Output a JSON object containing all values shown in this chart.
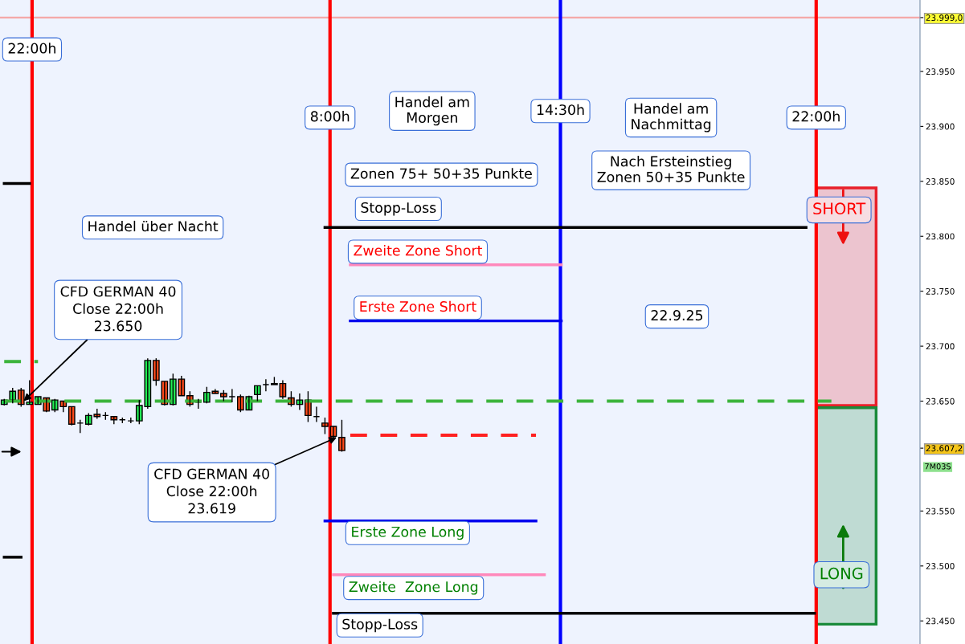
{
  "chart_data": {
    "type": "candlestick",
    "categories": [
      null,
      null,
      null,
      null,
      null,
      null,
      null,
      null,
      null,
      null,
      null,
      null,
      null,
      null,
      null,
      null,
      null,
      null,
      null,
      null,
      null,
      null,
      null,
      null,
      null,
      null,
      null,
      null,
      null,
      null,
      null,
      null,
      null,
      null,
      null,
      null,
      null,
      null,
      null,
      null,
      null,
      null,
      null,
      null,
      null,
      null,
      null,
      null,
      null,
      null,
      null,
      null,
      null,
      null,
      null,
      null,
      null,
      null,
      null,
      null,
      null,
      null,
      null,
      null,
      null,
      null,
      null,
      null,
      null,
      null,
      null,
      null,
      null,
      null,
      null,
      null,
      null,
      null,
      null,
      null,
      null,
      null,
      null,
      null,
      null,
      null,
      null,
      null,
      null,
      null,
      null,
      null,
      null,
      null,
      null,
      null,
      null,
      null,
      null,
      null,
      null,
      null,
      null,
      null,
      null,
      null,
      null,
      null,
      null
    ],
    "ohlc": [
      [
        23647,
        23652,
        23646,
        23651
      ],
      [
        23651,
        23662,
        23648,
        23659
      ],
      [
        23660,
        23662,
        23645,
        23647
      ],
      [
        23647,
        23669,
        23647,
        23649
      ],
      [
        23647,
        23654,
        23647,
        23654
      ],
      [
        23653,
        23653,
        23640,
        23641
      ],
      [
        23642,
        23652,
        23640,
        23651
      ],
      [
        23650,
        23650,
        23640,
        23645
      ],
      [
        23645,
        23645,
        23628,
        23629
      ],
      [
        23630,
        23633,
        23621,
        23630
      ],
      [
        23629,
        23639,
        23628,
        23637
      ],
      [
        23638,
        23643,
        23634,
        23636
      ],
      [
        23637,
        23640,
        23633,
        23637
      ],
      [
        23636,
        23636,
        23629,
        23633
      ],
      [
        23633,
        23635,
        23630,
        23633
      ],
      [
        23632,
        23635,
        23630,
        23632
      ],
      [
        23632,
        23651,
        23629,
        23646
      ],
      [
        23645,
        23689,
        23643,
        23687
      ],
      [
        23687,
        23689,
        23664,
        23669
      ],
      [
        23668,
        23668,
        23646,
        23647
      ],
      [
        23647,
        23675,
        23646,
        23670
      ],
      [
        23670,
        23673,
        23655,
        23655
      ],
      [
        23655,
        23659,
        23645,
        23647
      ],
      [
        23649,
        23652,
        23643,
        23649
      ],
      [
        23649,
        23663,
        23648,
        23658
      ],
      [
        23659,
        23661,
        23657,
        23657
      ],
      [
        23657,
        23660,
        23650,
        23654
      ],
      [
        23654,
        23661,
        23649,
        23654
      ],
      [
        23654,
        23656,
        23640,
        23642
      ],
      [
        23642,
        23655,
        23642,
        23654
      ],
      [
        23656,
        23664,
        23650,
        23664
      ],
      [
        23665,
        23670,
        23659,
        23665
      ],
      [
        23665,
        23672,
        23665,
        23666
      ],
      [
        23666,
        23669,
        23652,
        23654
      ],
      [
        23653,
        23659,
        23645,
        23647
      ],
      [
        23647,
        23657,
        23642,
        23651
      ],
      [
        23651,
        23659,
        23631,
        23637
      ],
      [
        23636,
        23645,
        23631,
        23636
      ],
      [
        23630,
        23635,
        23620,
        23627
      ],
      [
        23627,
        23627,
        23616,
        23618
      ],
      [
        23617,
        23633,
        23604,
        23605
      ],
      null,
      null,
      null,
      null,
      null,
      null,
      null,
      null,
      null,
      null,
      null,
      null,
      null,
      null,
      null,
      null,
      null,
      null,
      null,
      null,
      null,
      null,
      null,
      null,
      null,
      null,
      null,
      null,
      null,
      null,
      null,
      null,
      null,
      null,
      null,
      null,
      null,
      null,
      null,
      null,
      null,
      null,
      null,
      null,
      null,
      null,
      null,
      null,
      null,
      null,
      null,
      null,
      null,
      null,
      null,
      null,
      null,
      null,
      null,
      null,
      null,
      null,
      null,
      null,
      null,
      null,
      null,
      null
    ],
    "series": [
      {
        "type": "line",
        "color": "#3cb43c",
        "line_style": "dashed",
        "values": [
          23650,
          23650,
          23650,
          23650,
          23650,
          23650,
          23650,
          23650,
          23650,
          23650,
          23650,
          23650,
          23650,
          23650,
          23650,
          23650,
          23650,
          23650,
          23650,
          23650,
          23650,
          23650,
          23650,
          23650,
          23650,
          23650,
          23650,
          23650,
          23650,
          23650,
          23650,
          23650,
          23650,
          23650,
          23650,
          23650,
          23650,
          23650,
          23650,
          23650,
          23650,
          23650,
          23650,
          23650,
          23650,
          23650,
          23650,
          23650,
          23650,
          23650,
          23650,
          23650,
          23650,
          23650,
          23650,
          23650,
          23650,
          23650,
          23650,
          23650,
          23650,
          23650,
          23650,
          23650,
          23650,
          23650,
          23650,
          23650,
          23650,
          23650,
          23650,
          23650,
          23650,
          23650,
          23650,
          23650,
          23650,
          23650,
          23650,
          23650,
          23650,
          23650,
          23650,
          23650,
          23650,
          23650,
          23650,
          23650,
          23650,
          23650,
          23650,
          23650,
          23650,
          23650,
          23650,
          23650,
          23650,
          23650,
          23650,
          null,
          null,
          null,
          null,
          null,
          null,
          null,
          null,
          null,
          null
        ]
      },
      {
        "type": "line",
        "color": "#3cb43c",
        "line_style": "dashed",
        "values": [
          23686,
          23686,
          23686,
          23686,
          23686,
          null,
          null,
          null,
          null,
          null,
          null,
          null,
          null,
          null,
          null,
          null,
          null,
          null,
          null,
          null,
          null,
          null,
          null,
          null,
          null,
          null,
          null,
          null,
          null,
          null,
          null,
          null,
          null,
          null,
          null,
          null,
          null,
          null,
          null,
          null,
          null,
          null,
          null,
          null,
          null,
          null,
          null,
          null,
          null,
          null,
          null,
          null,
          null,
          null,
          null,
          null,
          null,
          null,
          null,
          null,
          null,
          null,
          null,
          null,
          null,
          null,
          null,
          null,
          null,
          null,
          null,
          null,
          null,
          null,
          null,
          null,
          null,
          null,
          null,
          null,
          null,
          null,
          null,
          null,
          null,
          null,
          null,
          null,
          null,
          null,
          null,
          null,
          null,
          null,
          null,
          null,
          null,
          null,
          null,
          null,
          null,
          null,
          null,
          null,
          null,
          null,
          null,
          null,
          null
        ]
      },
      {
        "type": "line",
        "color": "#ff2020",
        "line_style": "dashed",
        "values": [
          null,
          null,
          null,
          null,
          null,
          null,
          null,
          null,
          null,
          null,
          null,
          null,
          null,
          null,
          null,
          null,
          null,
          null,
          null,
          null,
          null,
          null,
          null,
          null,
          null,
          null,
          null,
          null,
          null,
          null,
          null,
          null,
          null,
          null,
          null,
          null,
          null,
          null,
          null,
          null,
          null,
          23619,
          23619,
          23619,
          23619,
          23619,
          23619,
          23619,
          23619,
          23619,
          23619,
          23619,
          23619,
          23619,
          23619,
          23619,
          23619,
          23619,
          23619,
          23619,
          23619,
          23619,
          23619,
          23619,
          null,
          null,
          null,
          null,
          null,
          null,
          null,
          null,
          null,
          null,
          null,
          null,
          null,
          null,
          null,
          null,
          null,
          null,
          null,
          null,
          null,
          null,
          null,
          null,
          null,
          null,
          null,
          null,
          null,
          null,
          null,
          null,
          null,
          null,
          null,
          null,
          null,
          null,
          null,
          null,
          null,
          null,
          null,
          null,
          null
        ]
      },
      {
        "type": "line",
        "color": "#000000",
        "line_style": "solid",
        "values": [
          null,
          null,
          null,
          null,
          null,
          null,
          null,
          null,
          null,
          null,
          null,
          null,
          null,
          null,
          null,
          null,
          null,
          null,
          null,
          null,
          null,
          null,
          null,
          null,
          null,
          null,
          null,
          null,
          null,
          null,
          null,
          null,
          null,
          null,
          null,
          null,
          null,
          null,
          23808,
          23808,
          23808,
          23808,
          23808,
          23808,
          23808,
          23808,
          23808,
          23808,
          23808,
          23808,
          23808,
          23808,
          23808,
          23808,
          23808,
          23808,
          23808,
          23808,
          23808,
          23808,
          23808,
          23808,
          23808,
          23808,
          23808,
          23808,
          23808,
          23808,
          23808,
          23808,
          23808,
          23808,
          23808,
          23808,
          23808,
          23808,
          23808,
          23808,
          23808,
          23808,
          23808,
          23808,
          23808,
          23808,
          23808,
          23808,
          23808,
          23808,
          23808,
          23808,
          23808,
          23808,
          23808,
          23808,
          23808,
          23808,
          null,
          null,
          null,
          null,
          null,
          null,
          null,
          null,
          null,
          null,
          null,
          null,
          null
        ]
      },
      {
        "type": "line",
        "color": "#ff88bb",
        "line_style": "solid",
        "values": [
          null,
          null,
          null,
          null,
          null,
          null,
          null,
          null,
          null,
          null,
          null,
          null,
          null,
          null,
          null,
          null,
          null,
          null,
          null,
          null,
          null,
          null,
          null,
          null,
          null,
          null,
          null,
          null,
          null,
          null,
          null,
          null,
          null,
          null,
          null,
          null,
          null,
          null,
          null,
          null,
          null,
          23774,
          23774,
          23774,
          23774,
          23774,
          23774,
          23774,
          23774,
          23774,
          23774,
          23774,
          23774,
          23774,
          23774,
          23774,
          23774,
          23774,
          23774,
          23774,
          23774,
          23774,
          23774,
          23774,
          23774,
          23774,
          23774,
          null,
          null,
          null,
          null,
          null,
          null,
          null,
          null,
          null,
          null,
          null,
          null,
          null,
          null,
          null,
          null,
          null,
          null,
          null,
          null,
          null,
          null,
          null,
          null,
          null,
          null,
          null,
          null,
          null,
          null,
          null,
          null,
          null,
          null,
          null,
          null,
          null,
          null,
          null,
          null,
          null,
          null
        ]
      },
      {
        "type": "line",
        "color": "#0000ee",
        "line_style": "solid",
        "values": [
          null,
          null,
          null,
          null,
          null,
          null,
          null,
          null,
          null,
          null,
          null,
          null,
          null,
          null,
          null,
          null,
          null,
          null,
          null,
          null,
          null,
          null,
          null,
          null,
          null,
          null,
          null,
          null,
          null,
          null,
          null,
          null,
          null,
          null,
          null,
          null,
          null,
          null,
          null,
          null,
          null,
          23723,
          23723,
          23723,
          23723,
          23723,
          23723,
          23723,
          23723,
          23723,
          23723,
          23723,
          23723,
          23723,
          23723,
          23723,
          23723,
          23723,
          23723,
          23723,
          23723,
          23723,
          23723,
          23723,
          23723,
          23723,
          23723,
          null,
          null,
          null,
          null,
          null,
          null,
          null,
          null,
          null,
          null,
          null,
          null,
          null,
          null,
          null,
          null,
          null,
          null,
          null,
          null,
          null,
          null,
          null,
          null,
          null,
          null,
          null,
          null,
          null,
          null,
          null,
          null,
          null,
          null,
          null,
          null,
          null,
          null,
          null,
          null,
          null,
          null
        ]
      },
      {
        "type": "line",
        "color": "#0000ee",
        "line_style": "solid",
        "values": [
          null,
          null,
          null,
          null,
          null,
          null,
          null,
          null,
          null,
          null,
          null,
          null,
          null,
          null,
          null,
          null,
          null,
          null,
          null,
          null,
          null,
          null,
          null,
          null,
          null,
          null,
          null,
          null,
          null,
          null,
          null,
          null,
          null,
          null,
          null,
          null,
          null,
          null,
          23541,
          23541,
          23541,
          23541,
          23541,
          23541,
          23541,
          23541,
          23541,
          23541,
          23541,
          23541,
          23541,
          23541,
          23541,
          23541,
          23541,
          23541,
          23541,
          23541,
          23541,
          23541,
          23541,
          23541,
          23541,
          23541,
          null,
          null,
          null,
          null,
          null,
          null,
          null,
          null,
          null,
          null,
          null,
          null,
          null,
          null,
          null,
          null,
          null,
          null,
          null,
          null,
          null,
          null,
          null,
          null,
          null,
          null,
          null,
          null,
          null,
          null,
          null,
          null,
          null,
          null,
          null,
          null,
          null,
          null,
          null,
          null,
          null,
          null,
          null,
          null,
          null
        ]
      },
      {
        "type": "line",
        "color": "#ff88bb",
        "line_style": "solid",
        "values": [
          null,
          null,
          null,
          null,
          null,
          null,
          null,
          null,
          null,
          null,
          null,
          null,
          null,
          null,
          null,
          null,
          null,
          null,
          null,
          null,
          null,
          null,
          null,
          null,
          null,
          null,
          null,
          null,
          null,
          null,
          null,
          null,
          null,
          null,
          null,
          null,
          null,
          null,
          null,
          23492,
          23492,
          23492,
          23492,
          23492,
          23492,
          23492,
          23492,
          23492,
          23492,
          23492,
          23492,
          23492,
          23492,
          23492,
          23492,
          23492,
          23492,
          23492,
          23492,
          23492,
          23492,
          23492,
          23492,
          23492,
          23492,
          null,
          null,
          null,
          null,
          null,
          null,
          null,
          null,
          null,
          null,
          null,
          null,
          null,
          null,
          null,
          null,
          null,
          null,
          null,
          null,
          null,
          null,
          null,
          null,
          null,
          null,
          null,
          null,
          null,
          null,
          null,
          null,
          null,
          null,
          null,
          null,
          null,
          null,
          null,
          null,
          null,
          null,
          null,
          null
        ]
      },
      {
        "type": "line",
        "color": "#000000",
        "line_style": "solid",
        "values": [
          null,
          null,
          null,
          null,
          null,
          null,
          null,
          null,
          null,
          null,
          null,
          null,
          null,
          null,
          null,
          null,
          null,
          null,
          null,
          null,
          null,
          null,
          null,
          null,
          null,
          null,
          null,
          null,
          null,
          null,
          null,
          null,
          null,
          null,
          null,
          null,
          null,
          null,
          null,
          23457,
          23457,
          23457,
          23457,
          23457,
          23457,
          23457,
          23457,
          23457,
          23457,
          23457,
          23457,
          23457,
          23457,
          23457,
          23457,
          23457,
          23457,
          23457,
          23457,
          23457,
          23457,
          23457,
          23457,
          23457,
          23457,
          23457,
          23457,
          23457,
          23457,
          23457,
          23457,
          23457,
          23457,
          23457,
          23457,
          23457,
          23457,
          23457,
          23457,
          23457,
          23457,
          23457,
          23457,
          23457,
          23457,
          23457,
          23457,
          23457,
          23457,
          23457,
          23457,
          23457,
          23457,
          23457,
          23457,
          23457,
          23457,
          null,
          null,
          null,
          null,
          null,
          null,
          null,
          null,
          null,
          null,
          null,
          null
        ]
      },
      {
        "type": "line",
        "color": "#000000",
        "line_style": "solid",
        "values": [
          23848,
          23848,
          23848,
          23848,
          null,
          null,
          null,
          null,
          null,
          null,
          null,
          null,
          null,
          null,
          null,
          null,
          null,
          null,
          null,
          null,
          null,
          null,
          null,
          null,
          null,
          null,
          null,
          null,
          null,
          null,
          null,
          null,
          null,
          null,
          null,
          null,
          null,
          null,
          null,
          null,
          null,
          null,
          null,
          null,
          null,
          null,
          null,
          null,
          null,
          null,
          null,
          null,
          null,
          null,
          null,
          null,
          null,
          null,
          null,
          null,
          null,
          null,
          null,
          null,
          null,
          null,
          null,
          null,
          null,
          null,
          null,
          null,
          null,
          null,
          null,
          null,
          null,
          null,
          null,
          null,
          null,
          null,
          null,
          null,
          null,
          null,
          null,
          null,
          null,
          null,
          null,
          null,
          null,
          null,
          null,
          null,
          null,
          null,
          null,
          null,
          null,
          null,
          null,
          null,
          null,
          null,
          null,
          null,
          null
        ]
      },
      {
        "type": "line",
        "color": "#000000",
        "line_style": "solid",
        "values": [
          23508,
          23508,
          23508,
          null,
          null,
          null,
          null,
          null,
          null,
          null,
          null,
          null,
          null,
          null,
          null,
          null,
          null,
          null,
          null,
          null,
          null,
          null,
          null,
          null,
          null,
          null,
          null,
          null,
          null,
          null,
          null,
          null,
          null,
          null,
          null,
          null,
          null,
          null,
          null,
          null,
          null,
          null,
          null,
          null,
          null,
          null,
          null,
          null,
          null,
          null,
          null,
          null,
          null,
          null,
          null,
          null,
          null,
          null,
          null,
          null,
          null,
          null,
          null,
          null,
          null,
          null,
          null,
          null,
          null,
          null,
          null,
          null,
          null,
          null,
          null,
          null,
          null,
          null,
          null,
          null,
          null,
          null,
          null,
          null,
          null,
          null,
          null,
          null,
          null,
          null,
          null,
          null,
          null,
          null,
          null,
          null,
          null,
          null,
          null,
          null,
          null,
          null,
          null,
          null,
          null,
          null,
          null,
          null,
          null
        ]
      }
    ],
    "ref_lines": [
      {
        "axis": "x",
        "label": "22:00h",
        "color": "#ff0000"
      },
      {
        "axis": "x",
        "label": "8:00h",
        "color": "#ff0000"
      },
      {
        "axis": "x",
        "label": "14:30h",
        "color": "#0000ff"
      },
      {
        "axis": "x",
        "label": "22:00h",
        "color": "#ff0000"
      },
      {
        "axis": "y",
        "value": 23999,
        "color": "#f4a8a8"
      }
    ],
    "bands": [
      {
        "axis": "y",
        "from": 23646,
        "to": 23844,
        "color": "#e8202a"
      },
      {
        "axis": "y",
        "from": 23447,
        "to": 23644,
        "color": "#1a8a3a"
      }
    ],
    "annotations": [
      "Handel über Nacht",
      "CFD GERMAN 40\nClose 22:00h\n23.650",
      "CFD GERMAN 40\nClose 22:00h\n23.619",
      "Handel am\nMorgen",
      "Handel am\nNachmittag",
      "Zonen 75+ 50+35 Punkte",
      "Nach Ersteinstieg\nZonen 50+35 Punkte",
      "Stopp-Loss",
      "Zweite Zone Short",
      "Erste Zone Short",
      "22.9.25",
      "Erste Zone Long",
      "Zweite  Zone Long",
      "Stopp-Loss",
      "SHORT",
      "LONG",
      "7M03S"
    ],
    "ylim": [
      23429,
      24015
    ],
    "yticks": [
      {
        "value": 23450,
        "label": "23.450"
      },
      {
        "value": 23500,
        "label": "23.500"
      },
      {
        "value": 23550,
        "label": "23.550"
      },
      {
        "value": 23607.2,
        "label": "23.607,2"
      },
      {
        "value": 23650,
        "label": "23.650"
      },
      {
        "value": 23700,
        "label": "23.700"
      },
      {
        "value": 23750,
        "label": "23.750"
      },
      {
        "value": 23800,
        "label": "23.800"
      },
      {
        "value": 23850,
        "label": "23.850"
      },
      {
        "value": 23900,
        "label": "23.900"
      },
      {
        "value": 23950,
        "label": "23.950"
      },
      {
        "value": 23999,
        "label": "23.999,0"
      }
    ],
    "tick_labels": "y",
    "grid": false,
    "legend": false
  }
}
